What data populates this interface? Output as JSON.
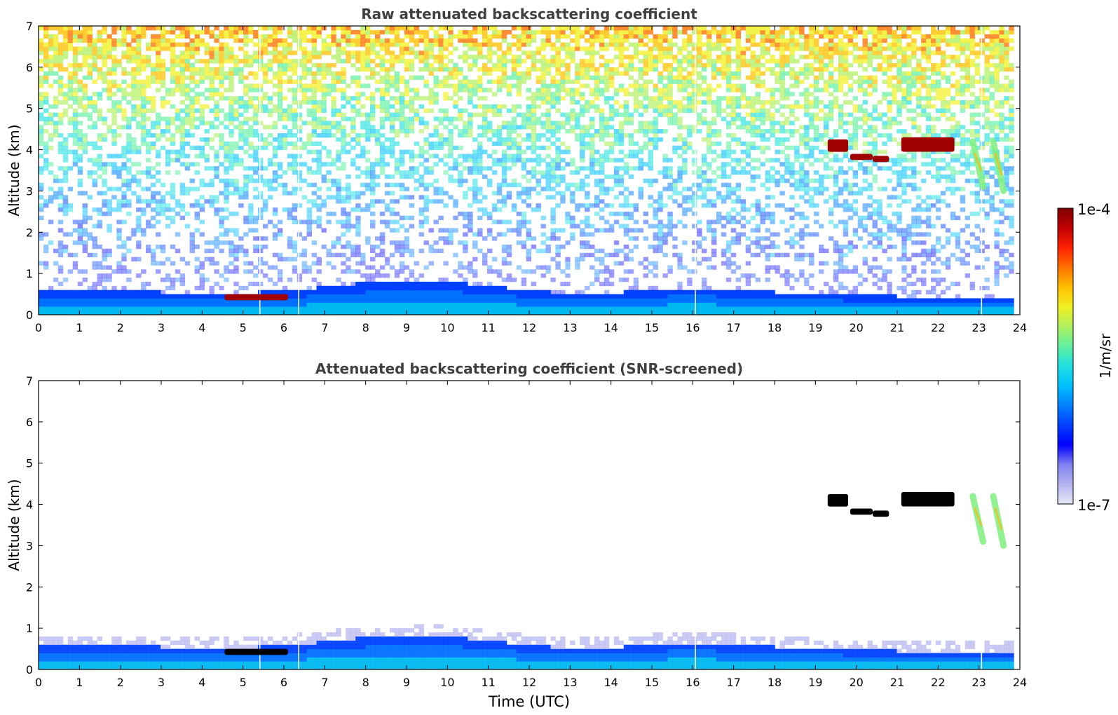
{
  "figure": {
    "colorbar": {
      "label": "1/m/sr",
      "max_label": "1e-4",
      "min_label": "1e-7",
      "scale": "log",
      "vmin": 1e-07,
      "vmax": 0.0001,
      "colors": [
        "#e8e8f8",
        "#b4b4f0",
        "#8080f0",
        "#0000ff",
        "#0040ff",
        "#0080ff",
        "#00c0ff",
        "#20e0e0",
        "#60f0a0",
        "#b0f060",
        "#f0f020",
        "#ffc000",
        "#ff7000",
        "#ff2000",
        "#c00000",
        "#800000"
      ]
    }
  },
  "chart_data": [
    {
      "type": "heatmap",
      "title": "Raw attenuated backscattering coefficient",
      "xlabel": "",
      "ylabel": "Altitude (km)",
      "xlim": [
        0,
        24
      ],
      "ylim": [
        0,
        7
      ],
      "xticks": [
        "0",
        "1",
        "2",
        "3",
        "4",
        "5",
        "6",
        "7",
        "8",
        "9",
        "10",
        "11",
        "12",
        "13",
        "14",
        "15",
        "16",
        "17",
        "18",
        "19",
        "20",
        "21",
        "22",
        "23",
        "24"
      ],
      "yticks": [
        "0",
        "1",
        "2",
        "3",
        "4",
        "5",
        "6",
        "7"
      ],
      "grid": false,
      "data_end_time": 23.85,
      "boundary_layer_top_km": [
        [
          0,
          0.55
        ],
        [
          2,
          0.52
        ],
        [
          3,
          0.5
        ],
        [
          4.5,
          0.45
        ],
        [
          6.3,
          0.55
        ],
        [
          7,
          0.62
        ],
        [
          8,
          0.72
        ],
        [
          9,
          0.75
        ],
        [
          9.5,
          0.8
        ],
        [
          10,
          0.75
        ],
        [
          11,
          0.65
        ],
        [
          11.5,
          0.6
        ],
        [
          12,
          0.52
        ],
        [
          13,
          0.48
        ],
        [
          14,
          0.48
        ],
        [
          15,
          0.55
        ],
        [
          16,
          0.6
        ],
        [
          17,
          0.55
        ],
        [
          18,
          0.5
        ],
        [
          19,
          0.45
        ],
        [
          20,
          0.42
        ],
        [
          21,
          0.4
        ],
        [
          22,
          0.4
        ],
        [
          23,
          0.38
        ],
        [
          23.85,
          0.38
        ]
      ],
      "features": [
        {
          "t0": 4.55,
          "t1": 6.1,
          "z0": 0.35,
          "z1": 0.5,
          "level": "1e-4"
        },
        {
          "t0": 19.3,
          "t1": 19.8,
          "z0": 3.95,
          "z1": 4.25,
          "level": "1e-4"
        },
        {
          "t0": 19.85,
          "t1": 20.4,
          "z0": 3.75,
          "z1": 3.9,
          "level": "1e-4"
        },
        {
          "t0": 20.4,
          "t1": 20.8,
          "z0": 3.7,
          "z1": 3.85,
          "level": "1e-4"
        },
        {
          "t0": 21.1,
          "t1": 22.4,
          "z0": 3.95,
          "z1": 4.3,
          "level": "1e-4"
        }
      ]
    },
    {
      "type": "heatmap",
      "title": "Attenuated backscattering coefficient (SNR-screened)",
      "xlabel": "Time (UTC)",
      "ylabel": "Altitude (km)",
      "xlim": [
        0,
        24
      ],
      "ylim": [
        0,
        7
      ],
      "xticks": [
        "0",
        "1",
        "2",
        "3",
        "4",
        "5",
        "6",
        "7",
        "8",
        "9",
        "10",
        "11",
        "12",
        "13",
        "14",
        "15",
        "16",
        "17",
        "18",
        "19",
        "20",
        "21",
        "22",
        "23",
        "24"
      ],
      "yticks": [
        "0",
        "1",
        "2",
        "3",
        "4",
        "5",
        "6",
        "7"
      ],
      "grid": false,
      "data_end_time": 23.85,
      "masked_color": "#000000",
      "features": [
        {
          "t0": 4.55,
          "t1": 6.1,
          "z0": 0.35,
          "z1": 0.5,
          "level": "masked"
        },
        {
          "t0": 19.3,
          "t1": 19.8,
          "z0": 3.95,
          "z1": 4.25,
          "level": "masked"
        },
        {
          "t0": 19.85,
          "t1": 20.4,
          "z0": 3.75,
          "z1": 3.9,
          "level": "masked"
        },
        {
          "t0": 20.4,
          "t1": 20.8,
          "z0": 3.7,
          "z1": 3.85,
          "level": "masked"
        },
        {
          "t0": 21.1,
          "t1": 22.4,
          "z0": 3.95,
          "z1": 4.3,
          "level": "masked"
        }
      ]
    }
  ]
}
